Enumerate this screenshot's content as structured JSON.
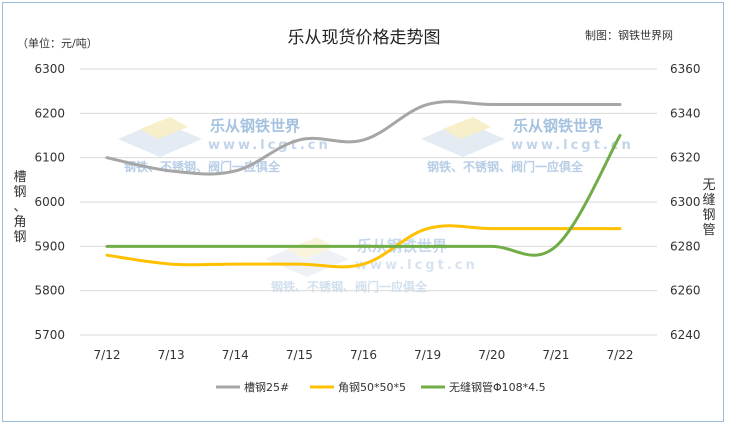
{
  "chart_data": {
    "type": "line",
    "title": "乐从现货价格走势图",
    "unit_label": "（单位：元/吨）",
    "source_label": "制图：钢铁世界网",
    "categories": [
      "7/12",
      "7/13",
      "7/14",
      "7/15",
      "7/16",
      "7/19",
      "7/20",
      "7/21",
      "7/22"
    ],
    "y_left": {
      "label": "槽钢、角钢",
      "min": 5700,
      "max": 6300,
      "step": 100,
      "ticks": [
        "5700",
        "5800",
        "5900",
        "6000",
        "6100",
        "6200",
        "6300"
      ]
    },
    "y_right": {
      "label": "无缝钢管",
      "min": 6240,
      "max": 6360,
      "step": 20,
      "ticks": [
        "6240",
        "6260",
        "6280",
        "6300",
        "6320",
        "6340",
        "6360"
      ]
    },
    "grid": true,
    "legend_position": "bottom",
    "series": [
      {
        "name": "槽钢25#",
        "axis": "left",
        "color": "#a6a6a6",
        "values": [
          6100,
          6070,
          6070,
          6140,
          6140,
          6220,
          6220,
          6220,
          6220
        ]
      },
      {
        "name": "角钢50*50*5",
        "axis": "left",
        "color": "#ffc000",
        "values": [
          5880,
          5860,
          5860,
          5860,
          5860,
          5940,
          5940,
          5940,
          5940
        ]
      },
      {
        "name": "无缝钢管Φ108*4.5",
        "axis": "right",
        "color": "#70ad47",
        "values": [
          6280,
          6280,
          6280,
          6280,
          6280,
          6280,
          6280,
          6280,
          6330
        ]
      }
    ],
    "watermark": {
      "brand": "乐从钢铁世界",
      "url": "www.lcgt.cn",
      "slogan": "钢铁、不锈钢、阀门一应俱全"
    }
  }
}
